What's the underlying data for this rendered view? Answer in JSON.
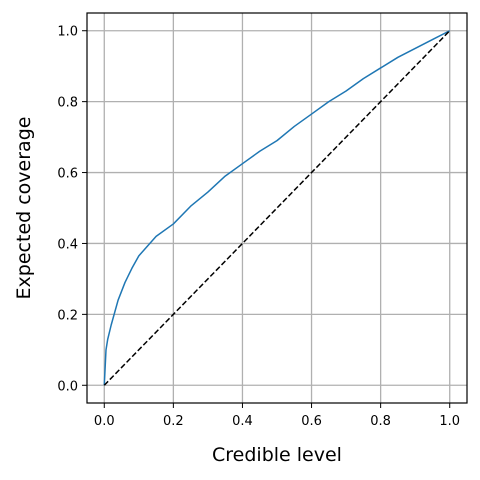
{
  "chart_data": {
    "type": "line",
    "title": "",
    "xlabel": "Credible level",
    "ylabel": "Expected coverage",
    "xlim": [
      -0.05,
      1.05
    ],
    "ylim": [
      -0.05,
      1.05
    ],
    "xticks": [
      0.0,
      0.2,
      0.4,
      0.6,
      0.8,
      1.0
    ],
    "yticks": [
      0.0,
      0.2,
      0.4,
      0.6,
      0.8,
      1.0
    ],
    "xtick_labels": [
      "0.0",
      "0.2",
      "0.4",
      "0.6",
      "0.8",
      "1.0"
    ],
    "ytick_labels": [
      "0.0",
      "0.2",
      "0.4",
      "0.6",
      "0.8",
      "1.0"
    ],
    "grid": true,
    "legend": "none",
    "series": [
      {
        "color": "#1f77b4",
        "style": "solid",
        "x": [
          0.0,
          0.005,
          0.01,
          0.02,
          0.04,
          0.06,
          0.08,
          0.1,
          0.15,
          0.2,
          0.25,
          0.3,
          0.35,
          0.4,
          0.45,
          0.5,
          0.55,
          0.6,
          0.65,
          0.7,
          0.75,
          0.8,
          0.85,
          0.9,
          0.95,
          1.0
        ],
        "y": [
          0.0,
          0.1,
          0.13,
          0.17,
          0.24,
          0.29,
          0.33,
          0.365,
          0.42,
          0.455,
          0.505,
          0.545,
          0.59,
          0.625,
          0.66,
          0.69,
          0.73,
          0.765,
          0.8,
          0.83,
          0.865,
          0.895,
          0.925,
          0.95,
          0.975,
          1.0
        ]
      },
      {
        "color": "#000000",
        "style": "dashed",
        "x": [
          0.0,
          1.0
        ],
        "y": [
          0.0,
          1.0
        ]
      }
    ]
  }
}
